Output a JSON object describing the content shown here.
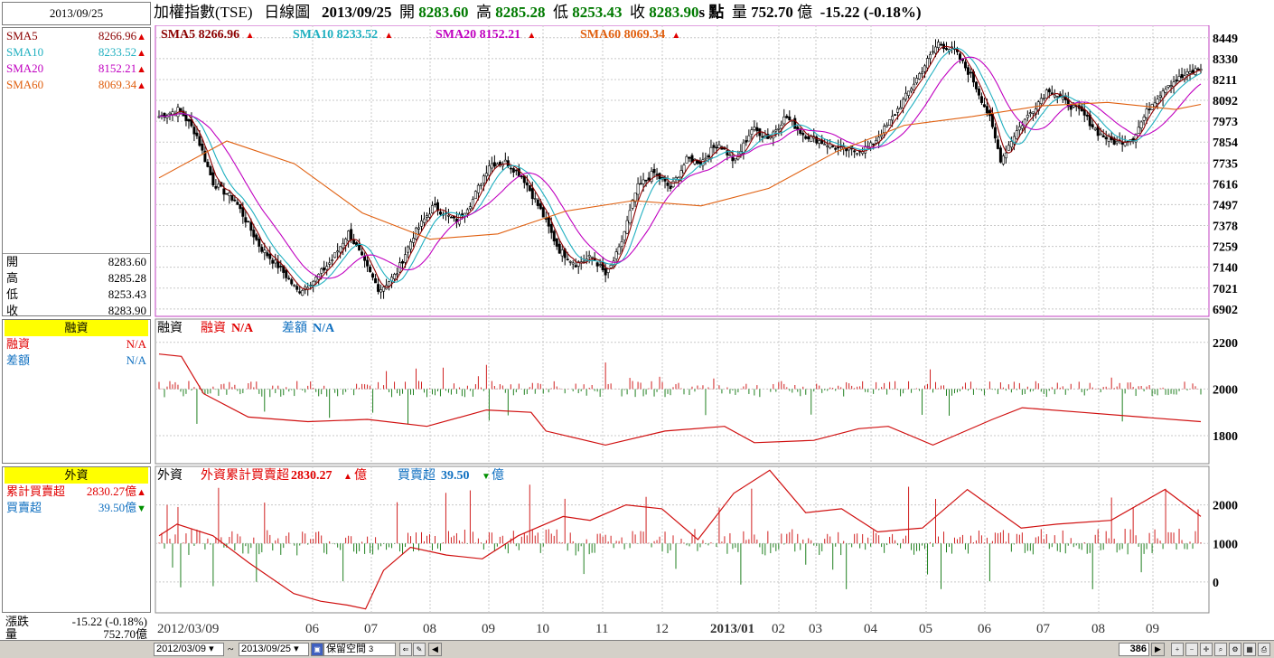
{
  "header": {
    "index_name": "加權指數(TSE)",
    "chart_type": "日線圖",
    "date": "2013/09/25",
    "open_label": "開",
    "open": "8283.60",
    "high_label": "高",
    "high": "8285.28",
    "low_label": "低",
    "low": "8253.43",
    "close_label": "收",
    "close": "8283.90",
    "unit_suffix": "s 點",
    "volume_label": "量",
    "volume": "752.70",
    "volume_unit": "億",
    "change": "-15.22 (-0.18%)"
  },
  "left": {
    "date": "2013/09/25",
    "sma": [
      {
        "label": "SMA5",
        "value": "8266.96",
        "color": "#8b0000",
        "dir": "up"
      },
      {
        "label": "SMA10",
        "value": "8233.52",
        "color": "#20b0c0",
        "dir": "up"
      },
      {
        "label": "SMA20",
        "value": "8152.21",
        "color": "#c000c0",
        "dir": "up"
      },
      {
        "label": "SMA60",
        "value": "8069.34",
        "color": "#e06010",
        "dir": "up"
      }
    ],
    "ohlc": [
      {
        "label": "開",
        "value": "8283.60"
      },
      {
        "label": "高",
        "value": "8285.28"
      },
      {
        "label": "低",
        "value": "8253.43"
      },
      {
        "label": "收",
        "value": "8283.90"
      }
    ],
    "margin": {
      "title": "融資",
      "rows": [
        {
          "label": "融資",
          "value": "N/A",
          "color": "#e00000"
        },
        {
          "label": "差額",
          "value": "N/A",
          "color": "#1070c0"
        }
      ]
    },
    "foreign": {
      "title": "外資",
      "rows": [
        {
          "label": "累計買賣超",
          "value": "2830.27億",
          "color": "#e00000",
          "dir": "up"
        },
        {
          "label": "買賣超",
          "value": "39.50億",
          "color": "#1070c0",
          "dir": "down"
        }
      ]
    },
    "change": {
      "label": "漲跌",
      "value": "-15.22 (-0.18%)"
    },
    "volume": {
      "label": "量",
      "value": "752.70億"
    }
  },
  "bottom": {
    "from_date": "2012/03/09",
    "tilde": "~",
    "to_date": "2013/09/25",
    "mode_label": "保留空間",
    "mode_value": "3",
    "count": "386"
  },
  "chart_data": [
    {
      "type": "candlestick",
      "series": [
        {
          "name": "SMA5",
          "legend": "SMA5 8266.96",
          "color": "#8b0000"
        },
        {
          "name": "SMA10",
          "legend": "SMA10 8233.52",
          "color": "#20b0c0"
        },
        {
          "name": "SMA20",
          "legend": "SMA20 8152.21",
          "color": "#c000c0"
        },
        {
          "name": "SMA60",
          "legend": "SMA60 8069.34",
          "color": "#e06010"
        }
      ],
      "yticks": [
        "8449",
        "8330",
        "8211",
        "8092",
        "7973",
        "7854",
        "7735",
        "7616",
        "7497",
        "7378",
        "7259",
        "7140",
        "7021",
        "6902"
      ],
      "ylim": [
        6860,
        8520
      ],
      "xticks": [
        "2012/03/09",
        "06",
        "07",
        "08",
        "09",
        "10",
        "11",
        "12",
        "2013/01",
        "02",
        "03",
        "04",
        "05",
        "06",
        "07",
        "08",
        "09"
      ],
      "close_path": [
        [
          0,
          8000
        ],
        [
          12,
          8040
        ],
        [
          22,
          7900
        ],
        [
          32,
          7620
        ],
        [
          45,
          7520
        ],
        [
          60,
          7250
        ],
        [
          72,
          7130
        ],
        [
          82,
          7000
        ],
        [
          92,
          7070
        ],
        [
          102,
          7180
        ],
        [
          112,
          7340
        ],
        [
          122,
          7150
        ],
        [
          130,
          7010
        ],
        [
          140,
          7100
        ],
        [
          150,
          7320
        ],
        [
          162,
          7490
        ],
        [
          175,
          7400
        ],
        [
          185,
          7520
        ],
        [
          195,
          7730
        ],
        [
          205,
          7740
        ],
        [
          215,
          7650
        ],
        [
          226,
          7450
        ],
        [
          236,
          7240
        ],
        [
          246,
          7160
        ],
        [
          256,
          7200
        ],
        [
          264,
          7090
        ],
        [
          272,
          7250
        ],
        [
          282,
          7590
        ],
        [
          292,
          7680
        ],
        [
          302,
          7590
        ],
        [
          312,
          7760
        ],
        [
          320,
          7740
        ],
        [
          330,
          7850
        ],
        [
          340,
          7740
        ],
        [
          350,
          7930
        ],
        [
          360,
          7880
        ],
        [
          370,
          8000
        ],
        [
          380,
          7900
        ],
        [
          390,
          7860
        ],
        [
          400,
          7820
        ],
        [
          410,
          7800
        ],
        [
          420,
          7830
        ],
        [
          430,
          7950
        ],
        [
          440,
          8100
        ],
        [
          450,
          8260
        ],
        [
          460,
          8420
        ],
        [
          470,
          8370
        ],
        [
          480,
          8220
        ],
        [
          490,
          8000
        ],
        [
          497,
          7750
        ],
        [
          505,
          7900
        ],
        [
          515,
          8030
        ],
        [
          525,
          8160
        ],
        [
          535,
          8080
        ],
        [
          545,
          8020
        ],
        [
          555,
          7900
        ],
        [
          565,
          7850
        ],
        [
          575,
          7880
        ],
        [
          585,
          8060
        ],
        [
          595,
          8180
        ],
        [
          605,
          8230
        ],
        [
          615,
          8280
        ]
      ],
      "sma60_path": [
        [
          0,
          7650
        ],
        [
          40,
          7860
        ],
        [
          80,
          7730
        ],
        [
          120,
          7450
        ],
        [
          160,
          7300
        ],
        [
          200,
          7330
        ],
        [
          240,
          7460
        ],
        [
          280,
          7520
        ],
        [
          320,
          7490
        ],
        [
          360,
          7590
        ],
        [
          400,
          7800
        ],
        [
          440,
          7950
        ],
        [
          480,
          8000
        ],
        [
          520,
          8060
        ],
        [
          560,
          8080
        ],
        [
          600,
          8040
        ],
        [
          615,
          8069
        ]
      ]
    },
    {
      "type": "bar+line",
      "title": "融資",
      "legend": [
        {
          "name": "融資",
          "value": "N/A",
          "color": "#e00000"
        },
        {
          "name": "差額",
          "value": "N/A",
          "color": "#1070c0"
        }
      ],
      "yticks": [
        "2200",
        "2000",
        "1800"
      ],
      "ylim": [
        1680,
        2300
      ],
      "line": [
        [
          0,
          2150
        ],
        [
          15,
          2140
        ],
        [
          30,
          1980
        ],
        [
          60,
          1880
        ],
        [
          100,
          1860
        ],
        [
          140,
          1870
        ],
        [
          180,
          1840
        ],
        [
          220,
          1910
        ],
        [
          250,
          1900
        ],
        [
          260,
          1820
        ],
        [
          300,
          1760
        ],
        [
          340,
          1820
        ],
        [
          380,
          1840
        ],
        [
          400,
          1770
        ],
        [
          440,
          1780
        ],
        [
          470,
          1830
        ],
        [
          490,
          1840
        ],
        [
          520,
          1760
        ],
        [
          560,
          1870
        ],
        [
          580,
          1920
        ],
        [
          620,
          1900
        ],
        [
          660,
          1880
        ],
        [
          700,
          1860
        ]
      ]
    },
    {
      "type": "bar+line",
      "title": "外資",
      "legend": [
        {
          "name": "外資累計買賣超",
          "value": "2830.27",
          "unit": "億",
          "color": "#e00000"
        },
        {
          "name": "買賣超",
          "value": "39.50",
          "unit": "億",
          "color": "#1070c0"
        }
      ],
      "yticks": [
        "2000",
        "1000",
        "0"
      ],
      "ylim": [
        -800,
        3000
      ],
      "line": [
        [
          0,
          1200
        ],
        [
          20,
          1500
        ],
        [
          60,
          1200
        ],
        [
          100,
          500
        ],
        [
          150,
          -300
        ],
        [
          180,
          -500
        ],
        [
          210,
          -600
        ],
        [
          230,
          -700
        ],
        [
          250,
          300
        ],
        [
          280,
          900
        ],
        [
          320,
          700
        ],
        [
          360,
          600
        ],
        [
          400,
          1200
        ],
        [
          430,
          1500
        ],
        [
          450,
          1700
        ],
        [
          480,
          1600
        ],
        [
          520,
          2000
        ],
        [
          560,
          1900
        ],
        [
          600,
          1100
        ],
        [
          640,
          2300
        ],
        [
          680,
          2900
        ],
        [
          720,
          1800
        ],
        [
          760,
          1900
        ],
        [
          800,
          1300
        ],
        [
          850,
          1400
        ],
        [
          900,
          2400
        ],
        [
          960,
          1400
        ],
        [
          1000,
          1500
        ],
        [
          1060,
          1600
        ],
        [
          1120,
          2400
        ],
        [
          1160,
          1700
        ]
      ]
    }
  ]
}
